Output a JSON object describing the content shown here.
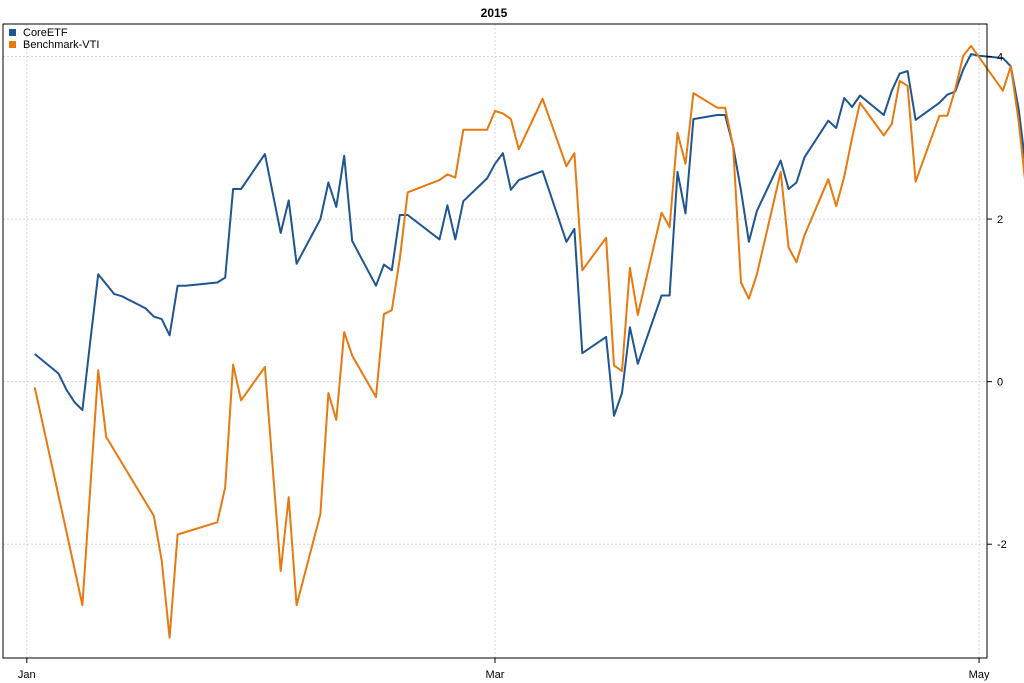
{
  "chart_data": {
    "type": "line",
    "title": "2015",
    "xlabel": "",
    "ylabel": "",
    "ylim": [
      -3.4,
      4.4
    ],
    "xlim": [
      "2014-12-29",
      "2015-05-02"
    ],
    "x_ticks": [
      {
        "date": "2015-01-01",
        "label": "Jan"
      },
      {
        "date": "2015-03-01",
        "label": "Mar"
      },
      {
        "date": "2015-05-01",
        "label": "May"
      }
    ],
    "y_ticks": [
      -2,
      0,
      2,
      4
    ],
    "y_axis_side": "right",
    "grid": true,
    "legend_position": "top-left",
    "series": [
      {
        "name": "CoreETF",
        "color": "#1f5591",
        "points": [
          [
            "2015-01-02",
            0.34
          ],
          [
            "2015-01-05",
            0.1
          ],
          [
            "2015-01-06",
            -0.1
          ],
          [
            "2015-01-07",
            -0.25
          ],
          [
            "2015-01-08",
            -0.35
          ],
          [
            "2015-01-09",
            0.5
          ],
          [
            "2015-01-10",
            1.32
          ],
          [
            "2015-01-12",
            1.08
          ],
          [
            "2015-01-13",
            1.05
          ],
          [
            "2015-01-15",
            0.95
          ],
          [
            "2015-01-16",
            0.9
          ],
          [
            "2015-01-17",
            0.8
          ],
          [
            "2015-01-18",
            0.77
          ],
          [
            "2015-01-19",
            0.57
          ],
          [
            "2015-01-20",
            1.18
          ],
          [
            "2015-01-21",
            1.18
          ],
          [
            "2015-01-25",
            1.22
          ],
          [
            "2015-01-26",
            1.28
          ],
          [
            "2015-01-27",
            2.37
          ],
          [
            "2015-01-28",
            2.37
          ],
          [
            "2015-01-31",
            2.8
          ],
          [
            "2015-02-02",
            1.83
          ],
          [
            "2015-02-03",
            2.23
          ],
          [
            "2015-02-04",
            1.45
          ],
          [
            "2015-02-07",
            2.0
          ],
          [
            "2015-02-08",
            2.45
          ],
          [
            "2015-02-09",
            2.15
          ],
          [
            "2015-02-10",
            2.78
          ],
          [
            "2015-02-11",
            1.73
          ],
          [
            "2015-02-14",
            1.18
          ],
          [
            "2015-02-15",
            1.44
          ],
          [
            "2015-02-16",
            1.37
          ],
          [
            "2015-02-17",
            2.05
          ],
          [
            "2015-02-18",
            2.05
          ],
          [
            "2015-02-22",
            1.75
          ],
          [
            "2015-02-23",
            2.17
          ],
          [
            "2015-02-24",
            1.75
          ],
          [
            "2015-02-25",
            2.22
          ],
          [
            "2015-02-28",
            2.5
          ],
          [
            "2015-03-01",
            2.68
          ],
          [
            "2015-03-02",
            2.81
          ],
          [
            "2015-03-03",
            2.36
          ],
          [
            "2015-03-04",
            2.48
          ],
          [
            "2015-03-07",
            2.59
          ],
          [
            "2015-03-10",
            1.72
          ],
          [
            "2015-03-11",
            1.88
          ],
          [
            "2015-03-12",
            0.35
          ],
          [
            "2015-03-15",
            0.55
          ],
          [
            "2015-03-16",
            -0.42
          ],
          [
            "2015-03-17",
            -0.14
          ],
          [
            "2015-03-18",
            0.67
          ],
          [
            "2015-03-19",
            0.22
          ],
          [
            "2015-03-22",
            1.06
          ],
          [
            "2015-03-23",
            1.06
          ],
          [
            "2015-03-24",
            2.58
          ],
          [
            "2015-03-25",
            2.07
          ],
          [
            "2015-03-26",
            3.23
          ],
          [
            "2015-03-29",
            3.28
          ],
          [
            "2015-03-30",
            3.28
          ],
          [
            "2015-03-31",
            2.9
          ],
          [
            "2015-04-01",
            2.35
          ],
          [
            "2015-04-02",
            1.72
          ],
          [
            "2015-04-03",
            2.1
          ],
          [
            "2015-04-06",
            2.72
          ],
          [
            "2015-04-07",
            2.37
          ],
          [
            "2015-04-08",
            2.45
          ],
          [
            "2015-04-09",
            2.76
          ],
          [
            "2015-04-12",
            3.21
          ],
          [
            "2015-04-13",
            3.12
          ],
          [
            "2015-04-14",
            3.49
          ],
          [
            "2015-04-15",
            3.38
          ],
          [
            "2015-04-16",
            3.52
          ],
          [
            "2015-04-19",
            3.28
          ],
          [
            "2015-04-20",
            3.58
          ],
          [
            "2015-04-21",
            3.79
          ],
          [
            "2015-04-22",
            3.82
          ],
          [
            "2015-04-23",
            3.22
          ],
          [
            "2015-04-26",
            3.43
          ],
          [
            "2015-04-27",
            3.53
          ],
          [
            "2015-04-28",
            3.57
          ],
          [
            "2015-04-29",
            3.84
          ],
          [
            "2015-04-30",
            4.03
          ],
          [
            "2015-05-01",
            4.01
          ],
          [
            "2015-05-04",
            3.98
          ],
          [
            "2015-05-05",
            3.88
          ],
          [
            "2015-05-06",
            3.35
          ],
          [
            "2015-05-07",
            2.55
          ]
        ]
      },
      {
        "name": "Benchmark-VTI",
        "color": "#e7790f",
        "points": [
          [
            "2015-01-02",
            -0.07
          ],
          [
            "2015-01-06",
            -1.85
          ],
          [
            "2015-01-08",
            -2.75
          ],
          [
            "2015-01-10",
            0.14
          ],
          [
            "2015-01-11",
            -0.68
          ],
          [
            "2015-01-17",
            -1.65
          ],
          [
            "2015-01-18",
            -2.2
          ],
          [
            "2015-01-19",
            -3.15
          ],
          [
            "2015-01-20",
            -1.88
          ],
          [
            "2015-01-25",
            -1.73
          ],
          [
            "2015-01-26",
            -1.3
          ],
          [
            "2015-01-27",
            0.21
          ],
          [
            "2015-01-28",
            -0.23
          ],
          [
            "2015-01-31",
            0.18
          ],
          [
            "2015-02-02",
            -2.33
          ],
          [
            "2015-02-03",
            -1.42
          ],
          [
            "2015-02-04",
            -2.75
          ],
          [
            "2015-02-07",
            -1.63
          ],
          [
            "2015-02-08",
            -0.14
          ],
          [
            "2015-02-09",
            -0.47
          ],
          [
            "2015-02-10",
            0.61
          ],
          [
            "2015-02-11",
            0.32
          ],
          [
            "2015-02-14",
            -0.19
          ],
          [
            "2015-02-15",
            0.83
          ],
          [
            "2015-02-16",
            0.88
          ],
          [
            "2015-02-17",
            1.51
          ],
          [
            "2015-02-18",
            2.33
          ],
          [
            "2015-02-22",
            2.48
          ],
          [
            "2015-02-23",
            2.55
          ],
          [
            "2015-02-24",
            2.51
          ],
          [
            "2015-02-25",
            3.1
          ],
          [
            "2015-02-28",
            3.1
          ],
          [
            "2015-03-01",
            3.33
          ],
          [
            "2015-03-02",
            3.3
          ],
          [
            "2015-03-03",
            3.23
          ],
          [
            "2015-03-04",
            2.86
          ],
          [
            "2015-03-07",
            3.48
          ],
          [
            "2015-03-10",
            2.65
          ],
          [
            "2015-03-11",
            2.81
          ],
          [
            "2015-03-12",
            1.37
          ],
          [
            "2015-03-15",
            1.77
          ],
          [
            "2015-03-16",
            0.2
          ],
          [
            "2015-03-17",
            0.13
          ],
          [
            "2015-03-18",
            1.4
          ],
          [
            "2015-03-19",
            0.82
          ],
          [
            "2015-03-22",
            2.08
          ],
          [
            "2015-03-23",
            1.9
          ],
          [
            "2015-03-24",
            3.06
          ],
          [
            "2015-03-25",
            2.68
          ],
          [
            "2015-03-26",
            3.55
          ],
          [
            "2015-03-29",
            3.37
          ],
          [
            "2015-03-30",
            3.37
          ],
          [
            "2015-03-31",
            2.9
          ],
          [
            "2015-04-01",
            1.22
          ],
          [
            "2015-04-02",
            1.02
          ],
          [
            "2015-04-03",
            1.32
          ],
          [
            "2015-04-06",
            2.58
          ],
          [
            "2015-04-07",
            1.65
          ],
          [
            "2015-04-08",
            1.47
          ],
          [
            "2015-04-09",
            1.8
          ],
          [
            "2015-04-12",
            2.49
          ],
          [
            "2015-04-13",
            2.16
          ],
          [
            "2015-04-14",
            2.52
          ],
          [
            "2015-04-15",
            3.0
          ],
          [
            "2015-04-16",
            3.43
          ],
          [
            "2015-04-19",
            3.03
          ],
          [
            "2015-04-20",
            3.17
          ],
          [
            "2015-04-21",
            3.7
          ],
          [
            "2015-04-22",
            3.64
          ],
          [
            "2015-04-23",
            2.46
          ],
          [
            "2015-04-26",
            3.27
          ],
          [
            "2015-04-27",
            3.27
          ],
          [
            "2015-04-28",
            3.6
          ],
          [
            "2015-04-29",
            4.01
          ],
          [
            "2015-04-30",
            4.13
          ],
          [
            "2015-05-04",
            3.58
          ],
          [
            "2015-05-05",
            3.88
          ],
          [
            "2015-05-06",
            3.2
          ],
          [
            "2015-05-07",
            2.29
          ]
        ]
      }
    ]
  }
}
